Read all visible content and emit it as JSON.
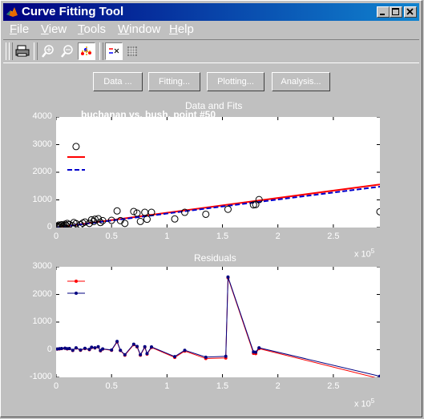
{
  "window": {
    "title": "Curve Fitting Tool"
  },
  "menus": [
    "File",
    "View",
    "Tools",
    "Window",
    "Help"
  ],
  "menu_underline": [
    "F",
    "V",
    "T",
    "W",
    "H"
  ],
  "menu_rest": [
    "ile",
    "iew",
    "ools",
    "indow",
    "elp"
  ],
  "buttons": {
    "data": "Data ...",
    "fitting": "Fitting...",
    "plotting": "Plotting...",
    "analysis": "Analysis..."
  },
  "colors": {
    "fit1": "#ff0000",
    "fit2": "#0000cc",
    "data_marker": "#000000",
    "residual2": "#000080"
  },
  "icons": [
    "print-icon",
    "zoom-in-icon",
    "zoom-out-icon",
    "data-cursor-icon",
    "legend-icon",
    "grid-icon"
  ],
  "chart_data": [
    {
      "type": "scatter",
      "title": "Data and Fits",
      "subtitle": "buchanan vs. bush, point #50",
      "xlim": [
        0,
        2.92
      ],
      "ylim": [
        0,
        4000
      ],
      "xticks": [
        0,
        0.5,
        1,
        1.5,
        2,
        2.5
      ],
      "xtick_labels": [
        "0",
        "0.5",
        "1",
        "1.5",
        "2",
        "2.5"
      ],
      "yticks": [
        0,
        1000,
        2000,
        3000,
        4000
      ],
      "ytick_labels": [
        "0",
        "1000",
        "2000",
        "3000",
        "4000"
      ],
      "x_multiplier": "x 10",
      "x_multiplier_exp": "5",
      "legend": "top-left",
      "points": [
        [
          0.01,
          20
        ],
        [
          0.02,
          50
        ],
        [
          0.025,
          90
        ],
        [
          0.03,
          30
        ],
        [
          0.04,
          70
        ],
        [
          0.05,
          100
        ],
        [
          0.06,
          40
        ],
        [
          0.07,
          60
        ],
        [
          0.08,
          120
        ],
        [
          0.09,
          80
        ],
        [
          0.1,
          150
        ],
        [
          0.12,
          110
        ],
        [
          0.15,
          60
        ],
        [
          0.16,
          180
        ],
        [
          0.18,
          140
        ],
        [
          0.22,
          100
        ],
        [
          0.24,
          160
        ],
        [
          0.26,
          200
        ],
        [
          0.3,
          150
        ],
        [
          0.32,
          280
        ],
        [
          0.34,
          220
        ],
        [
          0.35,
          300
        ],
        [
          0.38,
          320
        ],
        [
          0.4,
          180
        ],
        [
          0.42,
          250
        ],
        [
          0.5,
          260
        ],
        [
          0.55,
          600
        ],
        [
          0.58,
          250
        ],
        [
          0.62,
          150
        ],
        [
          0.7,
          580
        ],
        [
          0.73,
          520
        ],
        [
          0.76,
          220
        ],
        [
          0.8,
          550
        ],
        [
          0.82,
          300
        ],
        [
          0.86,
          550
        ],
        [
          1.07,
          310
        ],
        [
          1.16,
          550
        ],
        [
          1.35,
          480
        ],
        [
          1.55,
          660
        ],
        [
          1.78,
          820
        ],
        [
          1.8,
          830
        ],
        [
          1.83,
          1010
        ],
        [
          2.92,
          570
        ],
        [
          0.18,
          2930
        ]
      ],
      "series": [
        {
          "name": "",
          "x": [
            0,
            2.92
          ],
          "y": [
            0,
            1560
          ],
          "color": "#ff0000",
          "style": "solid"
        },
        {
          "name": "",
          "x": [
            0,
            2.92
          ],
          "y": [
            0,
            1480
          ],
          "color": "#0000cc",
          "style": "dashed"
        }
      ]
    },
    {
      "type": "line",
      "title": "Residuals",
      "xlim": [
        0,
        2.92
      ],
      "ylim": [
        -1000,
        3000
      ],
      "xticks": [
        0,
        0.5,
        1,
        1.5,
        2,
        2.5
      ],
      "xtick_labels": [
        "0",
        "0.5",
        "1",
        "1.5",
        "2",
        "2.5"
      ],
      "yticks": [
        -1000,
        0,
        1000,
        2000,
        3000
      ],
      "ytick_labels": [
        "-1000",
        "0",
        "1000",
        "2000",
        "3000"
      ],
      "x_multiplier": "x 10",
      "x_multiplier_exp": "5",
      "legend": "top-left",
      "series": [
        {
          "name": "",
          "color": "#ff0000",
          "x": [
            0.01,
            0.03,
            0.05,
            0.08,
            0.1,
            0.12,
            0.15,
            0.18,
            0.22,
            0.26,
            0.3,
            0.32,
            0.35,
            0.38,
            0.4,
            0.42,
            0.5,
            0.55,
            0.58,
            0.62,
            0.7,
            0.73,
            0.76,
            0.8,
            0.82,
            0.86,
            1.07,
            1.16,
            1.35,
            1.53,
            1.55,
            1.78,
            1.8,
            1.83,
            2.92
          ],
          "y": [
            20,
            30,
            40,
            50,
            30,
            40,
            -30,
            60,
            -20,
            40,
            0,
            80,
            60,
            100,
            -40,
            20,
            -20,
            280,
            -30,
            -200,
            180,
            100,
            -200,
            90,
            -160,
            80,
            -280,
            -50,
            -320,
            -300,
            2600,
            -130,
            -140,
            40,
            -1050
          ]
        },
        {
          "name": "",
          "color": "#000080",
          "x": [
            0.01,
            0.03,
            0.05,
            0.08,
            0.1,
            0.12,
            0.15,
            0.18,
            0.22,
            0.26,
            0.3,
            0.32,
            0.35,
            0.38,
            0.4,
            0.42,
            0.5,
            0.55,
            0.58,
            0.62,
            0.7,
            0.73,
            0.76,
            0.8,
            0.82,
            0.86,
            1.07,
            1.16,
            1.35,
            1.53,
            1.55,
            1.78,
            1.8,
            1.83,
            2.92
          ],
          "y": [
            25,
            35,
            45,
            55,
            35,
            45,
            -20,
            70,
            -10,
            50,
            10,
            90,
            70,
            110,
            -30,
            30,
            -10,
            300,
            -20,
            -180,
            200,
            120,
            -180,
            110,
            -140,
            100,
            -250,
            -20,
            -270,
            -240,
            2630,
            -80,
            -90,
            70,
            -960
          ]
        }
      ]
    }
  ]
}
